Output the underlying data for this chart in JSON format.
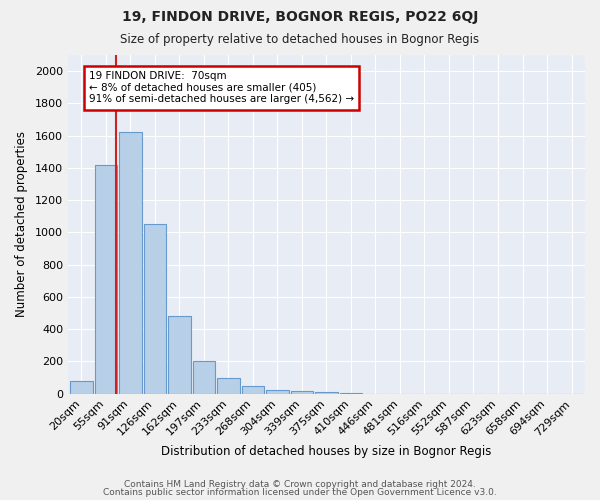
{
  "title": "19, FINDON DRIVE, BOGNOR REGIS, PO22 6QJ",
  "subtitle": "Size of property relative to detached houses in Bognor Regis",
  "xlabel": "Distribution of detached houses by size in Bognor Regis",
  "ylabel": "Number of detached properties",
  "footnote1": "Contains HM Land Registry data © Crown copyright and database right 2024.",
  "footnote2": "Contains public sector information licensed under the Open Government Licence v3.0.",
  "bar_labels": [
    "20sqm",
    "55sqm",
    "91sqm",
    "126sqm",
    "162sqm",
    "197sqm",
    "233sqm",
    "268sqm",
    "304sqm",
    "339sqm",
    "375sqm",
    "410sqm",
    "446sqm",
    "481sqm",
    "516sqm",
    "552sqm",
    "587sqm",
    "623sqm",
    "658sqm",
    "694sqm",
    "729sqm"
  ],
  "bar_values": [
    80,
    1420,
    1620,
    1050,
    480,
    205,
    100,
    45,
    25,
    15,
    10,
    5,
    0,
    0,
    0,
    0,
    0,
    0,
    0,
    0,
    0
  ],
  "bar_color": "#b8cfe8",
  "bar_edge_color": "#6699cc",
  "bg_color": "#e8edf5",
  "grid_color": "#ffffff",
  "annotation_text": "19 FINDON DRIVE:  70sqm\n← 8% of detached houses are smaller (405)\n91% of semi-detached houses are larger (4,562) →",
  "annotation_box_color": "#ffffff",
  "annotation_box_edge": "#cc0000",
  "vline_color": "#cc2222",
  "ylim": [
    0,
    2100
  ],
  "yticks": [
    0,
    200,
    400,
    600,
    800,
    1000,
    1200,
    1400,
    1600,
    1800,
    2000
  ],
  "title_fontsize": 10,
  "subtitle_fontsize": 8.5,
  "xlabel_fontsize": 8.5,
  "ylabel_fontsize": 8.5,
  "footnote_fontsize": 6.5,
  "tick_fontsize": 8,
  "annot_fontsize": 7.5
}
